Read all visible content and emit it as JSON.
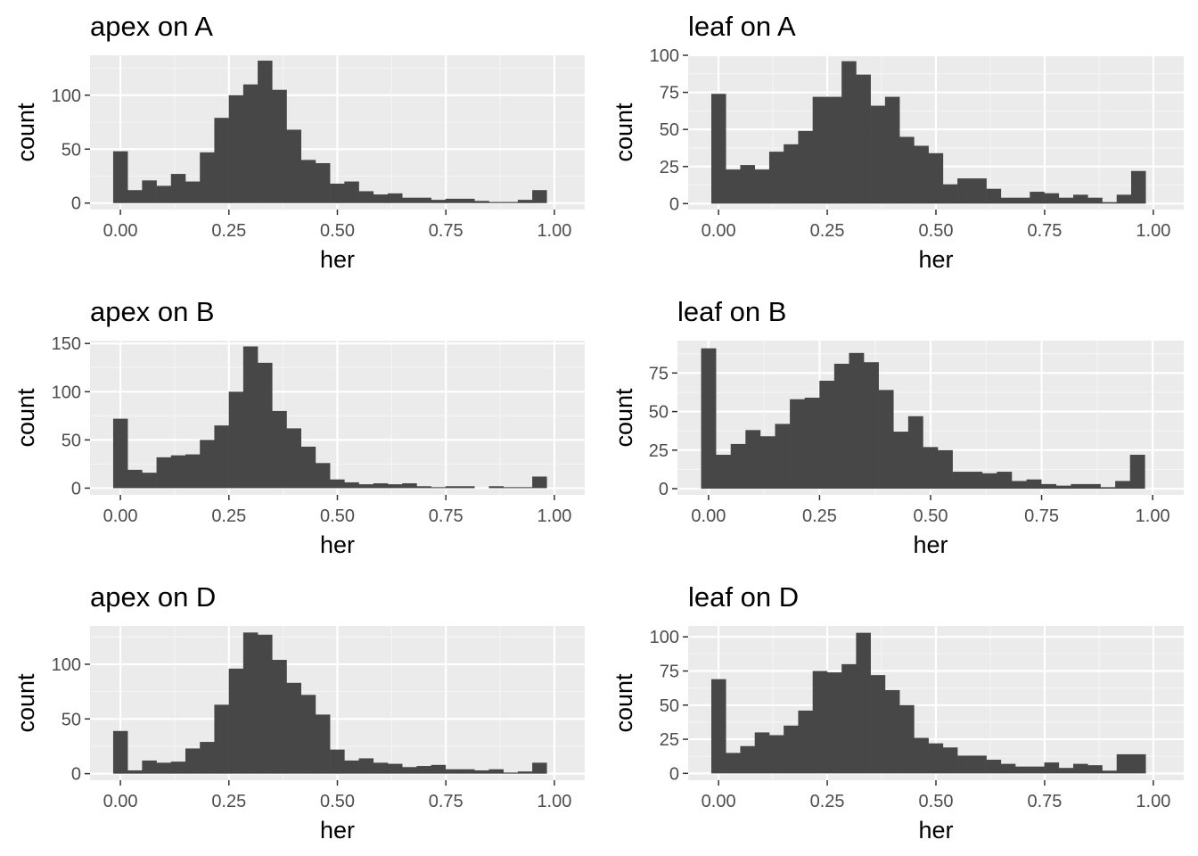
{
  "theme": {
    "panel_background": "#ebebeb",
    "grid_major": "#ffffff",
    "grid_minor": "#f5f5f5",
    "bar_fill": "#474747",
    "tick_color": "#4d4d4d"
  },
  "chart_data": [
    {
      "type": "bar",
      "title": "apex on A",
      "xlabel": "her",
      "ylabel": "count",
      "xlim": [
        -0.07,
        1.07
      ],
      "ylim": [
        -6,
        137
      ],
      "xticks": [
        0,
        0.25,
        0.5,
        0.75,
        1
      ],
      "xtick_labels": [
        "0.00",
        "0.25",
        "0.50",
        "0.75",
        "1.00"
      ],
      "yticks": [
        0,
        50,
        100
      ],
      "ytick_labels": [
        "0",
        "50",
        "100"
      ],
      "bin_width": 0.0333,
      "bin_start": -0.0167,
      "values": [
        48,
        12,
        21,
        16,
        27,
        20,
        47,
        79,
        100,
        110,
        132,
        105,
        68,
        40,
        37,
        18,
        20,
        11,
        8,
        9,
        5,
        5,
        3,
        4,
        4,
        2,
        1,
        1,
        3,
        12
      ]
    },
    {
      "type": "bar",
      "title": "leaf on A",
      "xlabel": "her",
      "ylabel": "count",
      "xlim": [
        -0.07,
        1.07
      ],
      "ylim": [
        -4,
        100
      ],
      "xticks": [
        0,
        0.25,
        0.5,
        0.75,
        1
      ],
      "xtick_labels": [
        "0.00",
        "0.25",
        "0.50",
        "0.75",
        "1.00"
      ],
      "yticks": [
        0,
        25,
        50,
        75,
        100
      ],
      "ytick_labels": [
        "0",
        "25",
        "50",
        "75",
        "100"
      ],
      "bin_width": 0.0333,
      "bin_start": -0.0167,
      "values": [
        74,
        23,
        26,
        23,
        35,
        40,
        49,
        72,
        72,
        96,
        87,
        66,
        72,
        45,
        39,
        34,
        13,
        17,
        17,
        10,
        4,
        4,
        8,
        7,
        4,
        6,
        4,
        1,
        6,
        22
      ]
    },
    {
      "type": "bar",
      "title": "apex on B",
      "xlabel": "her",
      "ylabel": "count",
      "xlim": [
        -0.07,
        1.07
      ],
      "ylim": [
        -7,
        153
      ],
      "xticks": [
        0,
        0.25,
        0.5,
        0.75,
        1
      ],
      "xtick_labels": [
        "0.00",
        "0.25",
        "0.50",
        "0.75",
        "1.00"
      ],
      "yticks": [
        0,
        50,
        100,
        150
      ],
      "ytick_labels": [
        "0",
        "50",
        "100",
        "150"
      ],
      "bin_width": 0.0333,
      "bin_start": -0.0167,
      "values": [
        72,
        19,
        16,
        32,
        34,
        35,
        50,
        65,
        100,
        147,
        130,
        80,
        62,
        43,
        26,
        9,
        6,
        4,
        5,
        4,
        5,
        2,
        1,
        2,
        2,
        0,
        2,
        1,
        1,
        12
      ]
    },
    {
      "type": "bar",
      "title": "leaf on B",
      "xlabel": "her",
      "ylabel": "count",
      "xlim": [
        -0.07,
        1.07
      ],
      "ylim": [
        -4,
        96
      ],
      "xticks": [
        0,
        0.25,
        0.5,
        0.75,
        1
      ],
      "xtick_labels": [
        "0.00",
        "0.25",
        "0.50",
        "0.75",
        "1.00"
      ],
      "yticks": [
        0,
        25,
        50,
        75
      ],
      "ytick_labels": [
        "0",
        "25",
        "50",
        "75"
      ],
      "bin_width": 0.0333,
      "bin_start": -0.0167,
      "values": [
        91,
        22,
        29,
        38,
        34,
        42,
        58,
        59,
        70,
        81,
        88,
        82,
        64,
        37,
        47,
        27,
        25,
        11,
        11,
        10,
        11,
        5,
        6,
        3,
        2,
        3,
        3,
        1,
        5,
        22
      ]
    },
    {
      "type": "bar",
      "title": "apex on D",
      "xlabel": "her",
      "ylabel": "count",
      "xlim": [
        -0.07,
        1.07
      ],
      "ylim": [
        -6,
        135
      ],
      "xticks": [
        0,
        0.25,
        0.5,
        0.75,
        1
      ],
      "xtick_labels": [
        "0.00",
        "0.25",
        "0.50",
        "0.75",
        "1.00"
      ],
      "yticks": [
        0,
        50,
        100
      ],
      "ytick_labels": [
        "0",
        "50",
        "100"
      ],
      "bin_width": 0.0333,
      "bin_start": -0.0167,
      "values": [
        39,
        3,
        12,
        10,
        11,
        23,
        29,
        63,
        96,
        129,
        127,
        104,
        83,
        72,
        54,
        22,
        12,
        14,
        10,
        9,
        6,
        7,
        8,
        4,
        4,
        3,
        4,
        1,
        2,
        10
      ]
    },
    {
      "type": "bar",
      "title": "leaf on D",
      "xlabel": "her",
      "ylabel": "count",
      "xlim": [
        -0.07,
        1.07
      ],
      "ylim": [
        -5,
        108
      ],
      "xticks": [
        0,
        0.25,
        0.5,
        0.75,
        1
      ],
      "xtick_labels": [
        "0.00",
        "0.25",
        "0.50",
        "0.75",
        "1.00"
      ],
      "yticks": [
        0,
        25,
        50,
        75,
        100
      ],
      "ytick_labels": [
        "0",
        "25",
        "50",
        "75",
        "100"
      ],
      "bin_width": 0.0333,
      "bin_start": -0.0167,
      "values": [
        69,
        15,
        20,
        30,
        28,
        35,
        46,
        75,
        74,
        80,
        103,
        72,
        61,
        50,
        26,
        22,
        19,
        13,
        13,
        10,
        7,
        5,
        5,
        8,
        4,
        7,
        6,
        2,
        14,
        14
      ]
    }
  ]
}
